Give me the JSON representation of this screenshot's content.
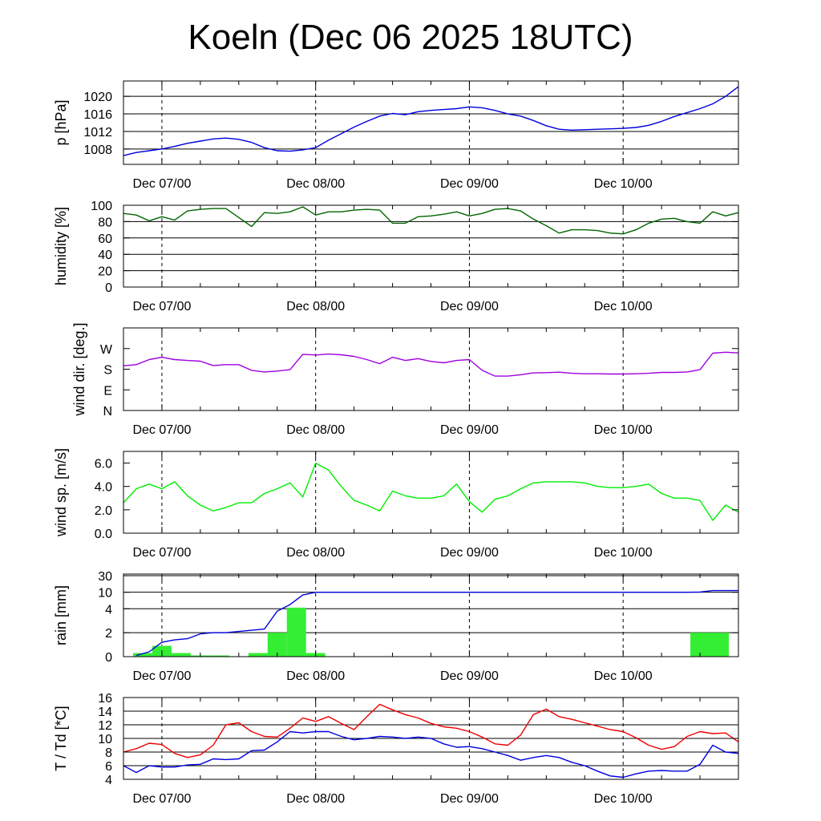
{
  "title": "Koeln (Dec 06 2025 18UTC)",
  "time_axis": {
    "start_hour": -6,
    "end_hour": 90,
    "tick_hours": [
      0,
      24,
      48,
      72
    ],
    "tick_labels": [
      "Dec 07/00",
      "Dec 08/00",
      "Dec 09/00",
      "Dec 10/00"
    ],
    "minor_tick_every_hours": 6
  },
  "chart_data": [
    {
      "type": "line",
      "id": "pressure",
      "ylabel": "p [hPa]",
      "ylim": [
        1004.5,
        1023.5
      ],
      "yticks": [
        1008,
        1012,
        1016,
        1020
      ],
      "yticklabels": [
        "1008",
        "1012",
        "1016",
        "1020"
      ],
      "grid": true,
      "series": [
        {
          "name": "pressure",
          "color": "#0000dd",
          "x": [
            -6,
            -4,
            -2,
            0,
            2,
            4,
            6,
            8,
            10,
            12,
            14,
            16,
            18,
            20,
            22,
            24,
            26,
            28,
            30,
            32,
            34,
            36,
            38,
            40,
            42,
            44,
            46,
            48,
            50,
            52,
            54,
            56,
            58,
            60,
            62,
            64,
            66,
            68,
            70,
            72,
            74,
            76,
            78,
            80,
            82,
            84,
            86,
            88,
            90
          ],
          "y": [
            1006.5,
            1007.2,
            1007.6,
            1008.0,
            1008.6,
            1009.3,
            1009.8,
            1010.3,
            1010.5,
            1010.2,
            1009.5,
            1008.3,
            1007.6,
            1007.5,
            1007.8,
            1008.3,
            1010.0,
            1011.5,
            1013.0,
            1014.3,
            1015.5,
            1016.1,
            1015.8,
            1016.5,
            1016.8,
            1017.0,
            1017.2,
            1017.6,
            1017.4,
            1016.8,
            1016.0,
            1015.5,
            1014.5,
            1013.3,
            1012.5,
            1012.3,
            1012.4,
            1012.5,
            1012.6,
            1012.7,
            1012.9,
            1013.4,
            1014.3,
            1015.4,
            1016.3,
            1017.2,
            1018.3,
            1020.0,
            1022.2
          ]
        }
      ]
    },
    {
      "type": "line",
      "id": "humidity",
      "ylabel": "humidity [%]",
      "ylim": [
        0,
        100
      ],
      "yticks": [
        0,
        20,
        40,
        60,
        80,
        100
      ],
      "yticklabels": [
        "0",
        "20",
        "40",
        "60",
        "80",
        "100"
      ],
      "grid": true,
      "series": [
        {
          "name": "humidity",
          "color": "#006600",
          "x": [
            -6,
            -4,
            -2,
            0,
            2,
            4,
            6,
            8,
            10,
            12,
            14,
            16,
            18,
            20,
            22,
            24,
            26,
            28,
            30,
            32,
            34,
            36,
            38,
            40,
            42,
            44,
            46,
            48,
            50,
            52,
            54,
            56,
            58,
            60,
            62,
            64,
            66,
            68,
            70,
            72,
            74,
            76,
            78,
            80,
            82,
            84,
            86,
            88,
            90
          ],
          "y": [
            90,
            88,
            81,
            86,
            82,
            93,
            95,
            96,
            96,
            85,
            74,
            91,
            90,
            92,
            98,
            88,
            92,
            92,
            94,
            95,
            94,
            78,
            78,
            86,
            87,
            89,
            92,
            87,
            90,
            95,
            96,
            93,
            83,
            75,
            66,
            70,
            70,
            69,
            66,
            65,
            70,
            78,
            83,
            84,
            80,
            78,
            92,
            87,
            91
          ]
        }
      ]
    },
    {
      "type": "line",
      "id": "wind_direction",
      "ylabel": "wind dir. [deg.]",
      "ylim": [
        0,
        360
      ],
      "yticks": [
        0,
        90,
        180,
        270
      ],
      "yticklabels": [
        "N",
        "E",
        "S",
        "W"
      ],
      "grid": false,
      "series": [
        {
          "name": "wind direction",
          "color": "#a000e0",
          "x": [
            -6,
            -4,
            -2,
            0,
            2,
            4,
            6,
            8,
            10,
            12,
            14,
            16,
            18,
            20,
            22,
            24,
            26,
            28,
            30,
            32,
            34,
            36,
            38,
            40,
            42,
            44,
            46,
            48,
            50,
            52,
            54,
            56,
            58,
            60,
            62,
            64,
            66,
            68,
            70,
            72,
            74,
            76,
            78,
            80,
            82,
            84,
            86,
            88,
            90
          ],
          "y": [
            195,
            200,
            222,
            232,
            222,
            218,
            215,
            196,
            200,
            200,
            175,
            168,
            172,
            178,
            245,
            242,
            246,
            243,
            236,
            222,
            204,
            232,
            218,
            226,
            214,
            208,
            218,
            222,
            175,
            150,
            150,
            156,
            164,
            165,
            167,
            162,
            160,
            160,
            159,
            159,
            160,
            162,
            166,
            166,
            168,
            178,
            250,
            254,
            251
          ]
        }
      ]
    },
    {
      "type": "line",
      "id": "wind_speed",
      "ylabel": "wind sp. [m/s]",
      "ylim": [
        0,
        7
      ],
      "yticks": [
        0,
        2,
        4,
        6
      ],
      "yticklabels": [
        "0.0",
        "2.0",
        "4.0",
        "6.0"
      ],
      "grid": false,
      "series": [
        {
          "name": "wind speed",
          "color": "#00ee00",
          "x": [
            -6,
            -4,
            -2,
            0,
            2,
            4,
            6,
            8,
            10,
            12,
            14,
            16,
            18,
            20,
            22,
            24,
            26,
            28,
            30,
            32,
            34,
            36,
            38,
            40,
            42,
            44,
            46,
            48,
            50,
            52,
            54,
            56,
            58,
            60,
            62,
            64,
            66,
            68,
            70,
            72,
            74,
            76,
            78,
            80,
            82,
            84,
            86,
            88,
            90
          ],
          "y": [
            2.6,
            3.8,
            4.2,
            3.8,
            4.4,
            3.2,
            2.4,
            1.9,
            2.2,
            2.6,
            2.6,
            3.4,
            3.8,
            4.3,
            3.1,
            6.0,
            5.4,
            4.0,
            2.8,
            2.4,
            1.9,
            3.6,
            3.2,
            3.0,
            3.0,
            3.2,
            4.2,
            2.7,
            1.8,
            2.9,
            3.2,
            3.8,
            4.3,
            4.4,
            4.4,
            4.4,
            4.3,
            4.0,
            3.9,
            3.9,
            4.0,
            4.2,
            3.4,
            3.0,
            3.0,
            2.8,
            1.1,
            2.4,
            1.8
          ]
        }
      ]
    },
    {
      "type": "bar",
      "id": "rain",
      "ylabel": "rain [mm]",
      "yaxis_scale": "nonlinear",
      "yticks": [
        0,
        2,
        4,
        10,
        30
      ],
      "yticklabels": [
        "0",
        "2",
        "4",
        "10",
        "30"
      ],
      "grid": true,
      "bar_width_hours": 3,
      "bars": {
        "color": "#33ee33",
        "x": [
          -3,
          0,
          3,
          6,
          9,
          15,
          18,
          21,
          24,
          84,
          87
        ],
        "values": [
          0.3,
          0.9,
          0.3,
          0.1,
          0.1,
          0.3,
          2.0,
          4.4,
          0.3,
          2.0,
          2.0
        ]
      },
      "series": [
        {
          "name": "accumulated rain",
          "color": "#0000dd",
          "x": [
            -4,
            -2,
            0,
            2,
            4,
            6,
            8,
            10,
            12,
            14,
            16,
            18,
            20,
            22,
            24,
            36,
            48,
            60,
            72,
            80,
            82,
            84,
            86,
            88,
            90
          ],
          "y": [
            0.1,
            0.4,
            1.2,
            1.4,
            1.5,
            1.9,
            2.0,
            2.0,
            2.1,
            2.2,
            2.3,
            3.8,
            5.5,
            9.0,
            10.0,
            10.0,
            10.0,
            10.0,
            10.0,
            10.0,
            10.0,
            10.3,
            12.0,
            12.0,
            12.0
          ]
        }
      ]
    },
    {
      "type": "line",
      "id": "temperature",
      "ylabel": "T / Td [*C]",
      "ylim": [
        4,
        16
      ],
      "yticks": [
        4,
        6,
        8,
        10,
        12,
        14,
        16
      ],
      "yticklabels": [
        "4",
        "6",
        "8",
        "10",
        "12",
        "14",
        "16"
      ],
      "grid": true,
      "series": [
        {
          "name": "T",
          "color": "#ee0000",
          "x": [
            -6,
            -4,
            -2,
            0,
            2,
            4,
            6,
            8,
            10,
            12,
            14,
            16,
            18,
            20,
            22,
            24,
            26,
            28,
            30,
            32,
            34,
            36,
            38,
            40,
            42,
            44,
            46,
            48,
            50,
            52,
            54,
            56,
            58,
            60,
            62,
            64,
            66,
            68,
            70,
            72,
            74,
            76,
            78,
            80,
            82,
            84,
            86,
            88,
            90
          ],
          "y": [
            8.0,
            8.5,
            9.3,
            9.1,
            7.8,
            7.2,
            7.6,
            9.0,
            12.0,
            12.3,
            11.0,
            10.3,
            10.2,
            11.5,
            13.0,
            12.5,
            13.2,
            12.2,
            11.3,
            13.2,
            15.0,
            14.2,
            13.5,
            13.0,
            12.2,
            11.7,
            11.5,
            11.0,
            10.2,
            9.2,
            9.0,
            10.5,
            13.5,
            14.3,
            13.2,
            12.8,
            12.3,
            11.8,
            11.3,
            11.0,
            10.1,
            9.0,
            8.4,
            8.8,
            10.3,
            11.0,
            10.7,
            10.8,
            9.5
          ]
        },
        {
          "name": "Td",
          "color": "#0000dd",
          "x": [
            -6,
            -4,
            -2,
            0,
            2,
            4,
            6,
            8,
            10,
            12,
            14,
            16,
            18,
            20,
            22,
            24,
            26,
            28,
            30,
            32,
            34,
            36,
            38,
            40,
            42,
            44,
            46,
            48,
            50,
            52,
            54,
            56,
            58,
            60,
            62,
            64,
            66,
            68,
            70,
            72,
            74,
            76,
            78,
            80,
            82,
            84,
            86,
            88,
            90
          ],
          "y": [
            6.0,
            5.0,
            6.0,
            5.8,
            5.8,
            6.1,
            6.2,
            7.0,
            6.9,
            7.0,
            8.2,
            8.3,
            9.5,
            11.0,
            10.8,
            11.0,
            11.0,
            10.3,
            9.8,
            10.0,
            10.3,
            10.2,
            10.0,
            10.2,
            10.0,
            9.2,
            8.7,
            8.8,
            8.5,
            8.0,
            7.5,
            6.8,
            7.2,
            7.5,
            7.2,
            6.5,
            6.0,
            5.2,
            4.5,
            4.3,
            4.8,
            5.2,
            5.3,
            5.2,
            5.2,
            6.2,
            9.0,
            8.0,
            7.8
          ]
        }
      ]
    }
  ]
}
